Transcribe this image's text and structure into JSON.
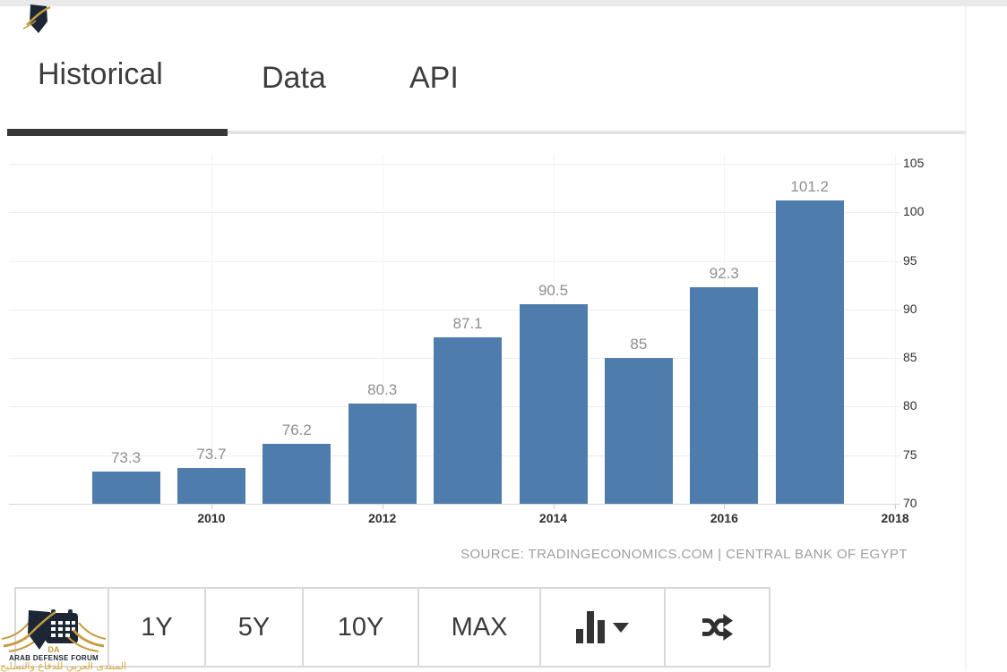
{
  "tabs": [
    {
      "label": "Historical",
      "active": true
    },
    {
      "label": "Data",
      "active": false
    },
    {
      "label": "API",
      "active": false
    }
  ],
  "chart_data": {
    "type": "bar",
    "x": [
      2009,
      2010,
      2011,
      2012,
      2013,
      2014,
      2015,
      2016,
      2017
    ],
    "values": [
      73.3,
      73.7,
      76.2,
      80.3,
      87.1,
      90.5,
      85,
      92.3,
      101.2
    ],
    "bar_labels": [
      "73.3",
      "73.7",
      "76.2",
      "80.3",
      "87.1",
      "90.5",
      "85",
      "92.3",
      "101.2"
    ],
    "x_tick_labels": [
      "2010",
      "2012",
      "2014",
      "2016",
      "2018"
    ],
    "y_ticks": [
      105,
      100,
      95,
      90,
      85,
      80,
      75,
      70
    ],
    "ylim": [
      70,
      105
    ],
    "y_axis_side": "right",
    "grid": true,
    "bar_color": "#4e7dad",
    "source_text": "SOURCE: TRADINGECONOMICS.COM | CENTRAL BANK OF EGYPT"
  },
  "toolbar": {
    "range_1y": "1Y",
    "range_5y": "5Y",
    "range_10y": "10Y",
    "range_max": "MAX",
    "icons": [
      "calendar-icon",
      "chart-type-icon",
      "compare-shuffle-icon"
    ]
  },
  "watermark": {
    "initials": "DA",
    "title": "ARAB DEFENSE FORUM",
    "subtitle_ar": "المنتدى العربي للدفاع والتسليح",
    "gold": "#c59d42",
    "navy": "#1d2634"
  }
}
